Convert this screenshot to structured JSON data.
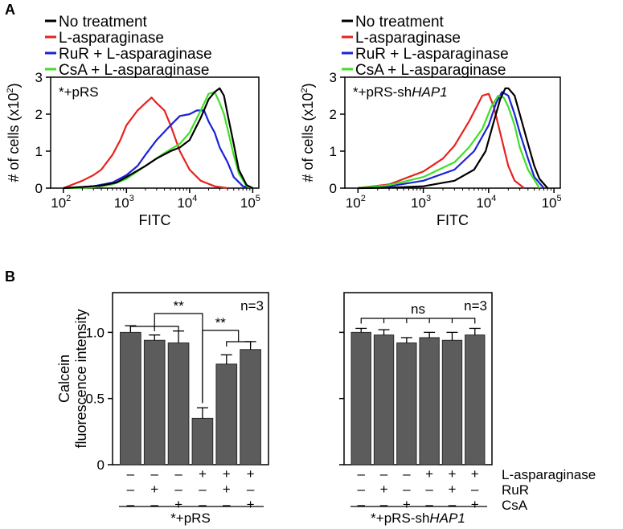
{
  "panel_labels": {
    "a": "A",
    "b": "B"
  },
  "legend": {
    "entries": [
      {
        "label": "No treatment",
        "color": "#000000"
      },
      {
        "label": "L-asparaginase",
        "color": "#e8221e"
      },
      {
        "label": "RuR + L-asparaginase",
        "color": "#1a22d8"
      },
      {
        "label": "CsA + L-asparaginase",
        "color": "#3ee024"
      }
    ]
  },
  "chart_data": [
    {
      "type": "line",
      "panel": "A-left",
      "title": "*+pRS",
      "xlabel": "FITC",
      "ylabel": "# of cells (x10",
      "ylabel_exp": "2",
      "ylabel_close": ")",
      "x_scale": "log",
      "xlim": [
        63,
        125000
      ],
      "ylim": [
        0,
        3
      ],
      "xtick_bases": [
        "10",
        "10",
        "10",
        "10"
      ],
      "xtick_exps": [
        "2",
        "3",
        "4",
        "5"
      ],
      "xtick_values": [
        100,
        1000,
        10000,
        100000
      ],
      "ytick_labels": [
        "0",
        "1",
        "2",
        "3"
      ],
      "ytick_values": [
        0,
        1,
        2,
        3
      ],
      "series": [
        {
          "name": "No treatment",
          "color": "#000000",
          "x": [
            100,
            200,
            400,
            700,
            1000,
            2000,
            3000,
            5000,
            7000,
            10000,
            15000,
            20000,
            25000,
            30000,
            35000,
            40000,
            50000,
            60000,
            80000,
            100000
          ],
          "y": [
            0,
            0.03,
            0.07,
            0.15,
            0.3,
            0.6,
            0.8,
            1.0,
            1.1,
            1.3,
            1.9,
            2.4,
            2.6,
            2.7,
            2.5,
            2.0,
            1.2,
            0.5,
            0.08,
            0
          ]
        },
        {
          "name": "L-asparaginase",
          "color": "#e8221e",
          "x": [
            100,
            200,
            300,
            400,
            600,
            800,
            1000,
            1500,
            2000,
            2500,
            3000,
            4000,
            5000,
            7000,
            10000,
            15000,
            25000,
            40000
          ],
          "y": [
            0,
            0.2,
            0.35,
            0.5,
            0.9,
            1.3,
            1.7,
            2.1,
            2.3,
            2.45,
            2.3,
            2.1,
            1.7,
            1.0,
            0.5,
            0.2,
            0.05,
            0
          ]
        },
        {
          "name": "RuR + L-asparaginase",
          "color": "#1a22d8",
          "x": [
            100,
            300,
            600,
            1000,
            1500,
            2000,
            3000,
            5000,
            7000,
            10000,
            13000,
            17000,
            20000,
            25000,
            30000,
            40000,
            50000,
            70000,
            100000
          ],
          "y": [
            0,
            0.05,
            0.15,
            0.35,
            0.6,
            0.9,
            1.3,
            1.7,
            1.95,
            2.0,
            2.1,
            2.1,
            1.8,
            1.5,
            1.1,
            0.7,
            0.3,
            0.05,
            0
          ]
        },
        {
          "name": "CsA + L-asparaginase",
          "color": "#3ee024",
          "x": [
            100,
            300,
            600,
            1000,
            2000,
            4000,
            7000,
            10000,
            15000,
            20000,
            25000,
            30000,
            35000,
            40000,
            50000,
            60000,
            80000,
            100000
          ],
          "y": [
            0,
            0.02,
            0.1,
            0.25,
            0.6,
            0.95,
            1.2,
            1.5,
            2.1,
            2.55,
            2.6,
            2.3,
            2.0,
            1.6,
            0.9,
            0.4,
            0.05,
            0
          ]
        }
      ]
    },
    {
      "type": "line",
      "panel": "A-right",
      "title": "*+pRS-sh",
      "title_italic": "HAP1",
      "xlabel": "FITC",
      "ylabel": "# of cells (x10",
      "ylabel_exp": "2",
      "ylabel_close": ")",
      "x_scale": "log",
      "xlim": [
        63,
        125000
      ],
      "ylim": [
        0,
        3
      ],
      "xtick_bases": [
        "10",
        "10",
        "10",
        "10"
      ],
      "xtick_exps": [
        "2",
        "3",
        "4",
        "5"
      ],
      "xtick_values": [
        100,
        1000,
        10000,
        100000
      ],
      "ytick_labels": [
        "0",
        "1",
        "2",
        "3"
      ],
      "ytick_values": [
        0,
        1,
        2,
        3
      ],
      "series": [
        {
          "name": "No treatment",
          "color": "#000000",
          "x": [
            100,
            300,
            1000,
            3000,
            6000,
            9000,
            12000,
            15000,
            18000,
            20000,
            25000,
            30000,
            40000,
            50000,
            60000,
            80000
          ],
          "y": [
            0,
            0.01,
            0.05,
            0.2,
            0.5,
            1.0,
            1.8,
            2.4,
            2.7,
            2.7,
            2.5,
            2.0,
            1.2,
            0.6,
            0.25,
            0
          ]
        },
        {
          "name": "L-asparaginase",
          "color": "#e8221e",
          "x": [
            100,
            300,
            1000,
            2000,
            3000,
            5000,
            7000,
            8000,
            10000,
            12000,
            15000,
            20000,
            25000,
            35000
          ],
          "y": [
            0,
            0.1,
            0.45,
            0.8,
            1.15,
            1.8,
            2.3,
            2.5,
            2.55,
            2.2,
            1.5,
            0.6,
            0.2,
            0
          ]
        },
        {
          "name": "RuR + L-asparaginase",
          "color": "#1a22d8",
          "x": [
            100,
            300,
            1000,
            3000,
            6000,
            10000,
            13000,
            16000,
            20000,
            25000,
            30000,
            40000,
            50000,
            70000
          ],
          "y": [
            0,
            0.05,
            0.2,
            0.5,
            1.0,
            1.7,
            2.3,
            2.6,
            2.5,
            2.0,
            1.5,
            0.8,
            0.3,
            0
          ]
        },
        {
          "name": "CsA + L-asparaginase",
          "color": "#3ee024",
          "x": [
            100,
            300,
            1000,
            3000,
            5000,
            8000,
            11000,
            14000,
            17000,
            20000,
            25000,
            30000,
            40000,
            60000
          ],
          "y": [
            0,
            0.08,
            0.3,
            0.7,
            1.1,
            1.6,
            2.2,
            2.5,
            2.45,
            2.2,
            1.7,
            1.1,
            0.5,
            0
          ]
        }
      ]
    },
    {
      "type": "bar",
      "panel": "B-left",
      "ylabel": "Calcein fluorescence intensity",
      "ylabel_line1": "Calcein",
      "ylabel_line2": "fluorescence intensity",
      "ylim": [
        0,
        1.3
      ],
      "ytick_labels": [
        "0",
        "0.5",
        "1.0"
      ],
      "ytick_values": [
        0,
        0.5,
        1.0
      ],
      "n_label": "n=3",
      "values": [
        1.0,
        0.94,
        0.92,
        0.35,
        0.76,
        0.87
      ],
      "errors": [
        0.05,
        0.04,
        0.09,
        0.08,
        0.07,
        0.06
      ],
      "bar_color": "#5c5c5c",
      "significance": [
        {
          "label": "**",
          "from_group": [
            0,
            2
          ],
          "to_bar": 3
        },
        {
          "label": "**",
          "from_bar": 3,
          "to_group": [
            4,
            5
          ]
        }
      ],
      "condition_rows": [
        {
          "name": "L-asparaginase",
          "marks": [
            "–",
            "–",
            "–",
            "+",
            "+",
            "+"
          ]
        },
        {
          "name": "RuR",
          "marks": [
            "–",
            "+",
            "–",
            "–",
            "+",
            "–"
          ]
        },
        {
          "name": "CsA",
          "marks": [
            "–",
            "–",
            "+",
            "–",
            "–",
            "+"
          ]
        }
      ],
      "group_label": "*+pRS"
    },
    {
      "type": "bar",
      "panel": "B-right",
      "ylim": [
        0,
        1.3
      ],
      "ytick_values": [
        0,
        0.5,
        1.0
      ],
      "n_label": "n=3",
      "values": [
        1.0,
        0.98,
        0.92,
        0.96,
        0.94,
        0.98
      ],
      "errors": [
        0.03,
        0.04,
        0.04,
        0.04,
        0.06,
        0.05
      ],
      "bar_color": "#5c5c5c",
      "significance": [
        {
          "label": "ns",
          "all_bars": true
        }
      ],
      "condition_rows": [
        {
          "name": "L-asparaginase",
          "marks": [
            "–",
            "–",
            "–",
            "+",
            "+",
            "+"
          ]
        },
        {
          "name": "RuR",
          "marks": [
            "–",
            "+",
            "–",
            "–",
            "+",
            "–"
          ]
        },
        {
          "name": "CsA",
          "marks": [
            "–",
            "–",
            "+",
            "–",
            "–",
            "+"
          ]
        }
      ],
      "group_label": "*+pRS-sh",
      "group_label_italic": "HAP1"
    }
  ]
}
